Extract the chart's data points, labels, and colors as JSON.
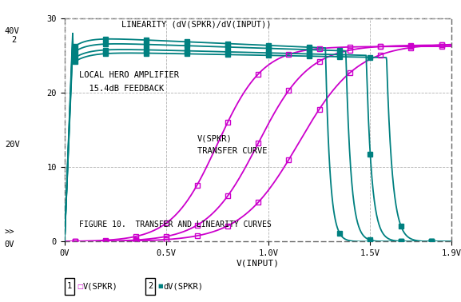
{
  "bg_color": "#ffffff",
  "plot_bg": "#ffffff",
  "xlim": [
    0,
    1.9
  ],
  "ylim": [
    0,
    30
  ],
  "xticks": [
    0,
    0.5,
    1.0,
    1.5,
    1.9
  ],
  "xticklabels": [
    "0V",
    "0.5V",
    "1.0V",
    "1.5V",
    "1.9V"
  ],
  "yticks": [
    0,
    10,
    20,
    30
  ],
  "yticklabels": [
    "0",
    "10",
    "20",
    "30"
  ],
  "xlabel": "V(INPUT)",
  "title_inner": "LINEARITY (dV(SPKR)/dV(INPUT))",
  "label_amp": "LOCAL HERO AMPLIFIER",
  "label_fb": "  15.4dB FEEDBACK",
  "label_vspkr": "V(SPKR)",
  "label_transfer": "TRANSFER CURVE",
  "label_fig": "FIGURE 10.  TRANSFER AND LINEARITY CURVES",
  "legend1_num": "1",
  "legend1_marker": "□",
  "legend1_text": "V(SPKR)",
  "legend2_num": "2",
  "legend2_marker": "■",
  "legend2_text": "dV(SPKR)",
  "magenta_color": "#cc00cc",
  "teal_color": "#008080",
  "left_label_top": "40V",
  "left_label_mid": "20V",
  "left_label_bot": "0V",
  "left_label_2": "2",
  "left_label_arr": ">>"
}
